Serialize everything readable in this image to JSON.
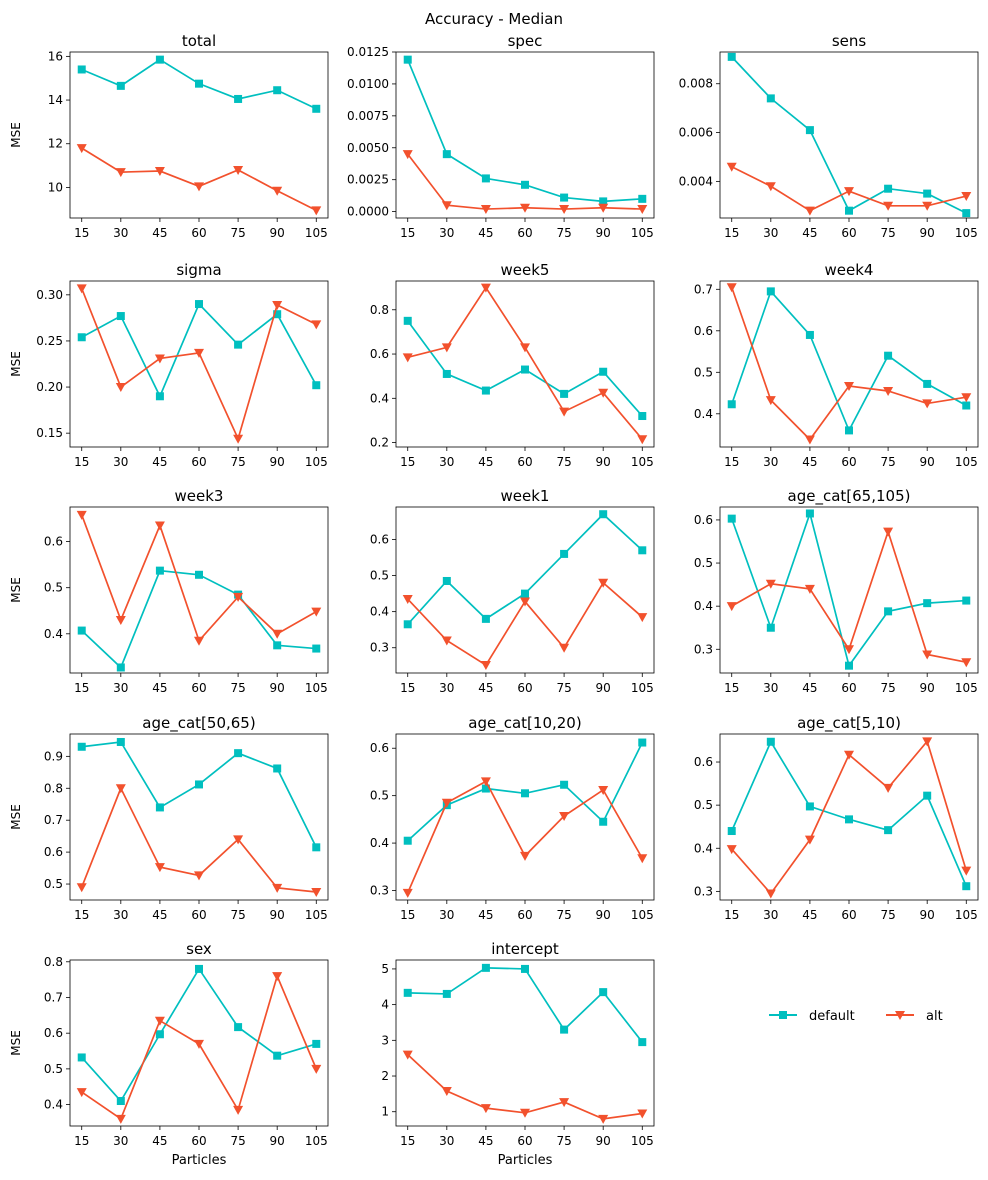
{
  "figure": {
    "title": "Accuracy - Median"
  },
  "legend": {
    "placement": "right of last row",
    "entries": [
      {
        "label": "default",
        "marker": "square",
        "color": "#00bfbf"
      },
      {
        "label": "alt",
        "marker": "triangle-down",
        "color": "#f2512d"
      }
    ]
  },
  "colors": {
    "default": "#00bfbf",
    "alt": "#f2512d"
  },
  "chart_data": [
    {
      "type": "line",
      "title": "total",
      "xlabel": "",
      "ylabel": "MSE",
      "x": [
        15,
        30,
        45,
        60,
        75,
        90,
        105
      ],
      "ylim": [
        8.6,
        16.2
      ],
      "yticks": [
        10,
        12,
        14,
        16
      ],
      "ytick_labels": [
        "10",
        "12",
        "14",
        "16"
      ],
      "series": [
        {
          "name": "default",
          "values": [
            15.4,
            14.65,
            15.85,
            14.75,
            14.05,
            14.45,
            13.6
          ]
        },
        {
          "name": "alt",
          "values": [
            11.8,
            10.7,
            10.75,
            10.05,
            10.8,
            9.85,
            8.95
          ]
        }
      ]
    },
    {
      "type": "line",
      "title": "spec",
      "xlabel": "",
      "ylabel": "",
      "x": [
        15,
        30,
        45,
        60,
        75,
        90,
        105
      ],
      "ylim": [
        -0.0005,
        0.0125
      ],
      "yticks": [
        0,
        0.0025,
        0.005,
        0.0075,
        0.01,
        0.0125
      ],
      "ytick_labels": [
        "0.0000",
        "0.0025",
        "0.0050",
        "0.0075",
        "0.0100",
        "0.0125"
      ],
      "series": [
        {
          "name": "default",
          "values": [
            0.0119,
            0.0045,
            0.0026,
            0.0021,
            0.0011,
            0.0008,
            0.001
          ]
        },
        {
          "name": "alt",
          "values": [
            0.0045,
            0.0005,
            0.0002,
            0.0003,
            0.0002,
            0.0003,
            0.0002
          ]
        }
      ]
    },
    {
      "type": "line",
      "title": "sens",
      "xlabel": "",
      "ylabel": "",
      "x": [
        15,
        30,
        45,
        60,
        75,
        90,
        105
      ],
      "ylim": [
        0.0025,
        0.0093
      ],
      "yticks": [
        0.004,
        0.006,
        0.008
      ],
      "ytick_labels": [
        "0.004",
        "0.006",
        "0.008"
      ],
      "series": [
        {
          "name": "default",
          "values": [
            0.0091,
            0.0074,
            0.0061,
            0.0028,
            0.0037,
            0.0035,
            0.0027
          ]
        },
        {
          "name": "alt",
          "values": [
            0.0046,
            0.0038,
            0.0028,
            0.0036,
            0.003,
            0.003,
            0.0034
          ]
        }
      ]
    },
    {
      "type": "line",
      "title": "sigma",
      "xlabel": "",
      "ylabel": "MSE",
      "x": [
        15,
        30,
        45,
        60,
        75,
        90,
        105
      ],
      "ylim": [
        0.135,
        0.315
      ],
      "yticks": [
        0.15,
        0.2,
        0.25,
        0.3
      ],
      "ytick_labels": [
        "0.15",
        "0.20",
        "0.25",
        "0.30"
      ],
      "series": [
        {
          "name": "default",
          "values": [
            0.254,
            0.277,
            0.19,
            0.29,
            0.246,
            0.279,
            0.202
          ]
        },
        {
          "name": "alt",
          "values": [
            0.307,
            0.2,
            0.231,
            0.237,
            0.144,
            0.289,
            0.268
          ]
        }
      ]
    },
    {
      "type": "line",
      "title": "week5",
      "xlabel": "",
      "ylabel": "",
      "x": [
        15,
        30,
        45,
        60,
        75,
        90,
        105
      ],
      "ylim": [
        0.18,
        0.93
      ],
      "yticks": [
        0.2,
        0.4,
        0.6,
        0.8
      ],
      "ytick_labels": [
        "0.2",
        "0.4",
        "0.6",
        "0.8"
      ],
      "series": [
        {
          "name": "default",
          "values": [
            0.75,
            0.51,
            0.435,
            0.53,
            0.42,
            0.52,
            0.32
          ]
        },
        {
          "name": "alt",
          "values": [
            0.585,
            0.63,
            0.9,
            0.63,
            0.34,
            0.425,
            0.215
          ]
        }
      ]
    },
    {
      "type": "line",
      "title": "week4",
      "xlabel": "",
      "ylabel": "",
      "x": [
        15,
        30,
        45,
        60,
        75,
        90,
        105
      ],
      "ylim": [
        0.32,
        0.72
      ],
      "yticks": [
        0.4,
        0.5,
        0.6,
        0.7
      ],
      "ytick_labels": [
        "0.4",
        "0.5",
        "0.6",
        "0.7"
      ],
      "series": [
        {
          "name": "default",
          "values": [
            0.423,
            0.695,
            0.59,
            0.36,
            0.54,
            0.472,
            0.42
          ]
        },
        {
          "name": "alt",
          "values": [
            0.705,
            0.433,
            0.338,
            0.467,
            0.455,
            0.425,
            0.44
          ]
        }
      ]
    },
    {
      "type": "line",
      "title": "week3",
      "xlabel": "",
      "ylabel": "MSE",
      "x": [
        15,
        30,
        45,
        60,
        75,
        90,
        105
      ],
      "ylim": [
        0.315,
        0.675
      ],
      "yticks": [
        0.4,
        0.5,
        0.6
      ],
      "ytick_labels": [
        "0.4",
        "0.5",
        "0.6"
      ],
      "series": [
        {
          "name": "default",
          "values": [
            0.407,
            0.327,
            0.537,
            0.528,
            0.485,
            0.375,
            0.368
          ]
        },
        {
          "name": "alt",
          "values": [
            0.658,
            0.43,
            0.635,
            0.385,
            0.48,
            0.4,
            0.448
          ]
        }
      ]
    },
    {
      "type": "line",
      "title": "week1",
      "xlabel": "",
      "ylabel": "",
      "x": [
        15,
        30,
        45,
        60,
        75,
        90,
        105
      ],
      "ylim": [
        0.23,
        0.69
      ],
      "yticks": [
        0.3,
        0.4,
        0.5,
        0.6
      ],
      "ytick_labels": [
        "0.3",
        "0.4",
        "0.5",
        "0.6"
      ],
      "series": [
        {
          "name": "default",
          "values": [
            0.365,
            0.485,
            0.38,
            0.45,
            0.56,
            0.67,
            0.57
          ]
        },
        {
          "name": "alt",
          "values": [
            0.435,
            0.32,
            0.252,
            0.428,
            0.3,
            0.48,
            0.385
          ]
        }
      ]
    },
    {
      "type": "line",
      "title": "age_cat[65,105)",
      "xlabel": "",
      "ylabel": "",
      "x": [
        15,
        30,
        45,
        60,
        75,
        90,
        105
      ],
      "ylim": [
        0.245,
        0.63
      ],
      "yticks": [
        0.3,
        0.4,
        0.5,
        0.6
      ],
      "ytick_labels": [
        "0.3",
        "0.4",
        "0.5",
        "0.6"
      ],
      "series": [
        {
          "name": "default",
          "values": [
            0.603,
            0.35,
            0.615,
            0.262,
            0.388,
            0.407,
            0.413
          ]
        },
        {
          "name": "alt",
          "values": [
            0.4,
            0.452,
            0.44,
            0.3,
            0.573,
            0.288,
            0.27
          ]
        }
      ]
    },
    {
      "type": "line",
      "title": "age_cat[50,65)",
      "xlabel": "",
      "ylabel": "MSE",
      "x": [
        15,
        30,
        45,
        60,
        75,
        90,
        105
      ],
      "ylim": [
        0.45,
        0.97
      ],
      "yticks": [
        0.5,
        0.6,
        0.7,
        0.8,
        0.9
      ],
      "ytick_labels": [
        "0.5",
        "0.6",
        "0.7",
        "0.8",
        "0.9"
      ],
      "series": [
        {
          "name": "default",
          "values": [
            0.93,
            0.945,
            0.74,
            0.812,
            0.91,
            0.862,
            0.615
          ]
        },
        {
          "name": "alt",
          "values": [
            0.49,
            0.8,
            0.553,
            0.527,
            0.64,
            0.488,
            0.475
          ]
        }
      ]
    },
    {
      "type": "line",
      "title": "age_cat[10,20)",
      "xlabel": "",
      "ylabel": "",
      "x": [
        15,
        30,
        45,
        60,
        75,
        90,
        105
      ],
      "ylim": [
        0.28,
        0.63
      ],
      "yticks": [
        0.3,
        0.4,
        0.5,
        0.6
      ],
      "ytick_labels": [
        "0.3",
        "0.4",
        "0.5",
        "0.6"
      ],
      "series": [
        {
          "name": "default",
          "values": [
            0.405,
            0.48,
            0.515,
            0.505,
            0.523,
            0.445,
            0.612
          ]
        },
        {
          "name": "alt",
          "values": [
            0.295,
            0.485,
            0.53,
            0.373,
            0.457,
            0.512,
            0.368
          ]
        }
      ]
    },
    {
      "type": "line",
      "title": "age_cat[5,10)",
      "xlabel": "",
      "ylabel": "",
      "x": [
        15,
        30,
        45,
        60,
        75,
        90,
        105
      ],
      "ylim": [
        0.28,
        0.665
      ],
      "yticks": [
        0.3,
        0.4,
        0.5,
        0.6
      ],
      "ytick_labels": [
        "0.3",
        "0.4",
        "0.5",
        "0.6"
      ],
      "series": [
        {
          "name": "default",
          "values": [
            0.44,
            0.647,
            0.497,
            0.467,
            0.442,
            0.522,
            0.312
          ]
        },
        {
          "name": "alt",
          "values": [
            0.398,
            0.295,
            0.42,
            0.617,
            0.54,
            0.648,
            0.348
          ]
        }
      ]
    },
    {
      "type": "line",
      "title": "sex",
      "xlabel": "Particles",
      "ylabel": "MSE",
      "x": [
        15,
        30,
        45,
        60,
        75,
        90,
        105
      ],
      "ylim": [
        0.34,
        0.805
      ],
      "yticks": [
        0.4,
        0.5,
        0.6,
        0.7,
        0.8
      ],
      "ytick_labels": [
        "0.4",
        "0.5",
        "0.6",
        "0.7",
        "0.8"
      ],
      "series": [
        {
          "name": "default",
          "values": [
            0.532,
            0.41,
            0.597,
            0.78,
            0.617,
            0.537,
            0.57
          ]
        },
        {
          "name": "alt",
          "values": [
            0.435,
            0.36,
            0.635,
            0.57,
            0.385,
            0.76,
            0.5
          ]
        }
      ]
    },
    {
      "type": "line",
      "title": "intercept",
      "xlabel": "Particles",
      "ylabel": "",
      "x": [
        15,
        30,
        45,
        60,
        75,
        90,
        105
      ],
      "ylim": [
        0.6,
        5.25
      ],
      "yticks": [
        1,
        2,
        3,
        4,
        5
      ],
      "ytick_labels": [
        "1",
        "2",
        "3",
        "4",
        "5"
      ],
      "series": [
        {
          "name": "default",
          "values": [
            4.33,
            4.3,
            5.03,
            5.0,
            3.3,
            4.35,
            2.95
          ]
        },
        {
          "name": "alt",
          "values": [
            2.6,
            1.58,
            1.1,
            0.97,
            1.27,
            0.8,
            0.95
          ]
        }
      ]
    }
  ]
}
